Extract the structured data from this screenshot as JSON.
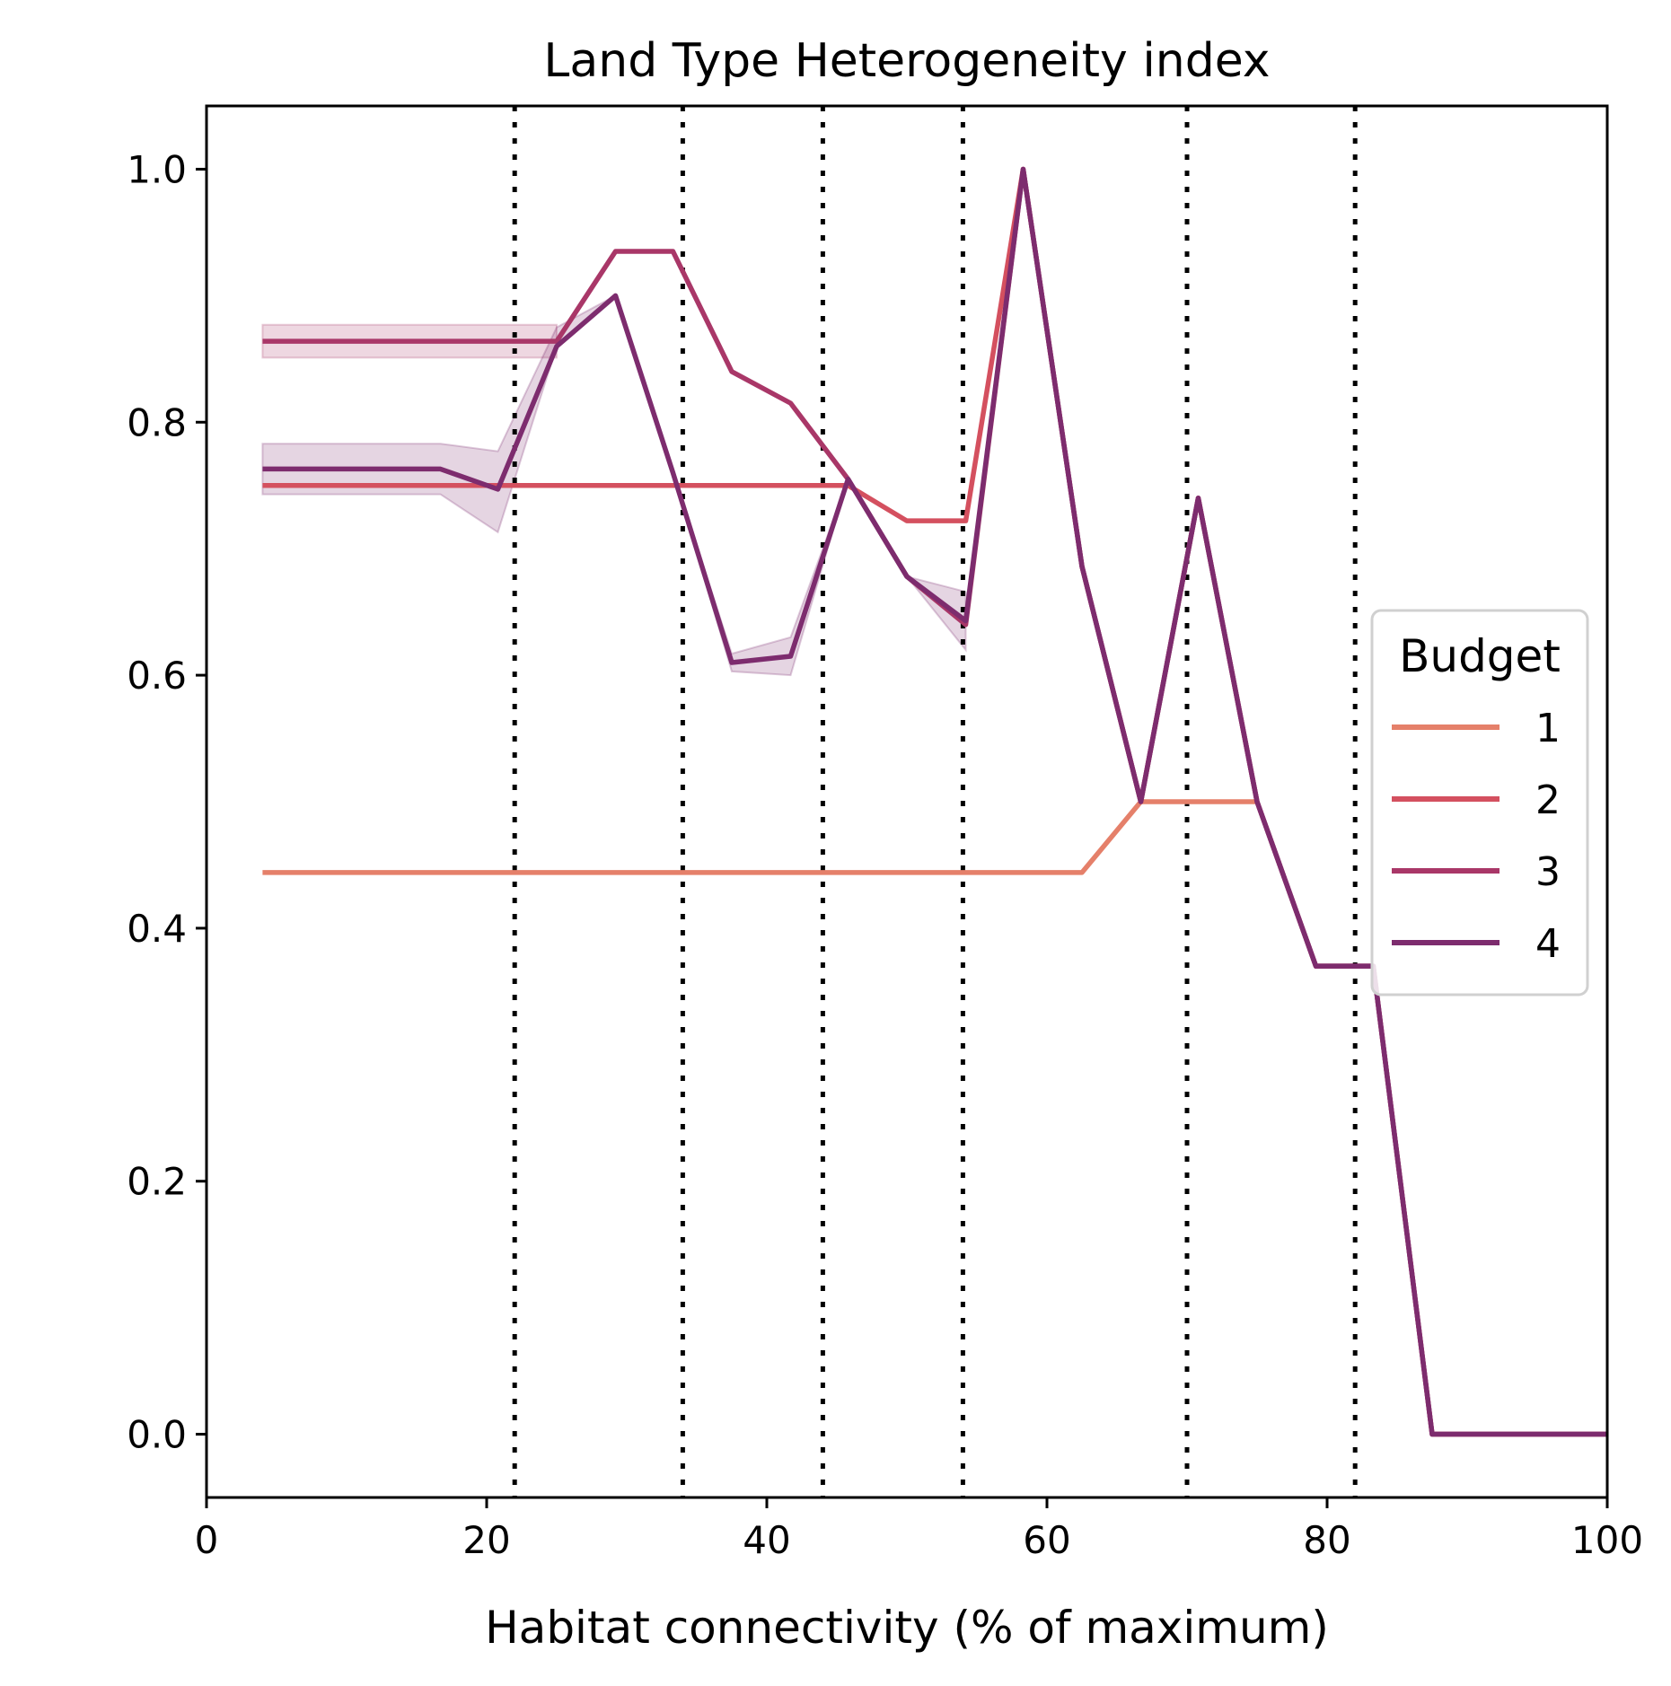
{
  "chart_data": {
    "type": "line",
    "title": "Land Type Heterogeneity index",
    "xlabel": "Habitat connectivity (% of maximum)",
    "ylabel": "",
    "xlim": [
      0,
      100
    ],
    "ylim": [
      -0.05,
      1.05
    ],
    "xticks": [
      0,
      20,
      40,
      60,
      80,
      100
    ],
    "xtick_labels": [
      "0",
      "20",
      "40",
      "60",
      "80",
      "100"
    ],
    "yticks": [
      0.0,
      0.2,
      0.4,
      0.6,
      0.8,
      1.0
    ],
    "ytick_labels": [
      "0.0",
      "0.2",
      "0.4",
      "0.6",
      "0.8",
      "1.0"
    ],
    "vlines": [
      22,
      34,
      44,
      54,
      70,
      82
    ],
    "legend": {
      "title": "Budget",
      "placement": "center-right"
    },
    "series": [
      {
        "name": "1",
        "color": "#e5806a",
        "x": [
          4,
          62.5,
          66.7,
          75
        ],
        "y": [
          0.444,
          0.444,
          0.5,
          0.5
        ]
      },
      {
        "name": "2",
        "color": "#d4505f",
        "x": [
          4,
          45.8,
          50,
          54.2,
          58.3,
          62.5,
          66.7,
          70.8,
          75,
          79.2,
          83.3,
          87.5,
          100
        ],
        "y": [
          0.75,
          0.75,
          0.722,
          0.722,
          1.0,
          0.686,
          0.5,
          0.74,
          0.5,
          0.37,
          0.37,
          0.0,
          0.0
        ]
      },
      {
        "name": "3",
        "color": "#a93768",
        "x": [
          4,
          25,
          29.2,
          33.3,
          37.5,
          41.7,
          45.8,
          50,
          54.2,
          58.3,
          62.5,
          66.7,
          70.8,
          75,
          79.2,
          83.3,
          87.5,
          100
        ],
        "y": [
          0.864,
          0.864,
          0.935,
          0.935,
          0.84,
          0.815,
          0.755,
          0.678,
          0.64,
          1.0,
          0.686,
          0.5,
          0.74,
          0.5,
          0.37,
          0.37,
          0.0,
          0.0
        ],
        "ci_x": [
          4,
          25
        ],
        "ci_low": [
          0.851,
          0.851
        ],
        "ci_high": [
          0.877,
          0.877
        ]
      },
      {
        "name": "4",
        "color": "#7d2c6e",
        "x": [
          4,
          16.7,
          20.8,
          25,
          29.2,
          33.3,
          37.5,
          41.7,
          45.8,
          50,
          54.2,
          58.3,
          62.5,
          66.7,
          70.8,
          75,
          79.2,
          83.3,
          87.5,
          100
        ],
        "y": [
          0.763,
          0.763,
          0.747,
          0.86,
          0.9,
          0.76,
          0.61,
          0.615,
          0.755,
          0.678,
          0.643,
          1.0,
          0.686,
          0.5,
          0.74,
          0.5,
          0.37,
          0.37,
          0.0,
          0.0
        ],
        "ci_x": [
          4,
          16.7,
          20.8,
          25,
          29.2,
          33.3,
          37.5,
          41.7,
          45.8,
          50,
          54.2
        ],
        "ci_low": [
          0.743,
          0.743,
          0.713,
          0.86,
          0.9,
          0.76,
          0.603,
          0.6,
          0.755,
          0.678,
          0.62
        ],
        "ci_high": [
          0.783,
          0.783,
          0.777,
          0.875,
          0.9,
          0.76,
          0.617,
          0.63,
          0.755,
          0.678,
          0.666
        ]
      }
    ]
  }
}
